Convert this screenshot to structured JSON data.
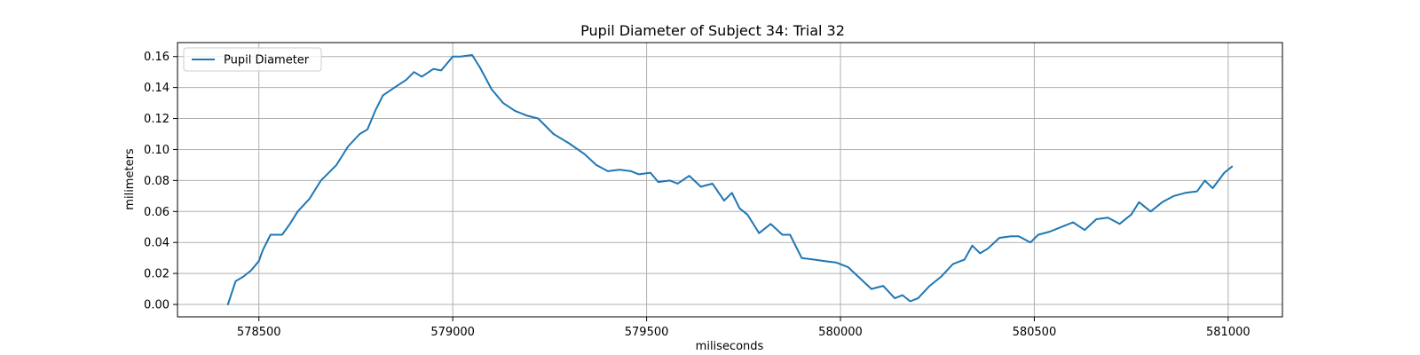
{
  "chart_data": {
    "type": "line",
    "title": "Pupil Diameter of Subject 34: Trial 32",
    "xlabel": "miliseconds",
    "ylabel": "milimeters",
    "xlim": [
      578290,
      581140
    ],
    "ylim": [
      -0.008,
      0.169
    ],
    "x_ticks": [
      578500,
      579000,
      579500,
      580000,
      580500,
      581000
    ],
    "y_ticks": [
      0.0,
      0.02,
      0.04,
      0.06,
      0.08,
      0.1,
      0.12,
      0.14,
      0.16
    ],
    "y_tick_labels": [
      "0.00",
      "0.02",
      "0.04",
      "0.06",
      "0.08",
      "0.10",
      "0.12",
      "0.14",
      "0.16"
    ],
    "grid": true,
    "legend_position": "top-left",
    "series": [
      {
        "name": "Pupil Diameter",
        "color": "#1f77b4",
        "x": [
          578420,
          578440,
          578460,
          578480,
          578500,
          578510,
          578530,
          578560,
          578580,
          578600,
          578630,
          578660,
          578700,
          578730,
          578760,
          578780,
          578800,
          578820,
          578850,
          578880,
          578900,
          578920,
          578950,
          578970,
          579000,
          579020,
          579050,
          579070,
          579100,
          579130,
          579160,
          579190,
          579220,
          579260,
          579300,
          579340,
          579370,
          579400,
          579430,
          579460,
          579480,
          579510,
          579530,
          579560,
          579580,
          579610,
          579640,
          579670,
          579700,
          579720,
          579740,
          579760,
          579790,
          579820,
          579850,
          579870,
          579900,
          579930,
          579960,
          579990,
          580020,
          580050,
          580080,
          580110,
          580140,
          580160,
          580180,
          580200,
          580230,
          580260,
          580290,
          580320,
          580340,
          580360,
          580380,
          580410,
          580440,
          580460,
          580490,
          580510,
          580540,
          580570,
          580600,
          580630,
          580660,
          580690,
          580720,
          580750,
          580770,
          580800,
          580830,
          580860,
          580890,
          580920,
          580940,
          580960,
          580990,
          581010
        ],
        "values": [
          0.0,
          0.015,
          0.018,
          0.022,
          0.028,
          0.035,
          0.045,
          0.045,
          0.052,
          0.06,
          0.068,
          0.08,
          0.09,
          0.102,
          0.11,
          0.113,
          0.125,
          0.135,
          0.14,
          0.145,
          0.15,
          0.147,
          0.152,
          0.151,
          0.16,
          0.16,
          0.161,
          0.153,
          0.139,
          0.13,
          0.125,
          0.122,
          0.12,
          0.11,
          0.104,
          0.097,
          0.09,
          0.086,
          0.087,
          0.086,
          0.084,
          0.085,
          0.079,
          0.08,
          0.078,
          0.083,
          0.076,
          0.078,
          0.067,
          0.072,
          0.062,
          0.058,
          0.046,
          0.052,
          0.045,
          0.045,
          0.03,
          0.029,
          0.028,
          0.027,
          0.024,
          0.017,
          0.01,
          0.012,
          0.004,
          0.006,
          0.002,
          0.004,
          0.012,
          0.018,
          0.026,
          0.029,
          0.038,
          0.033,
          0.036,
          0.043,
          0.044,
          0.044,
          0.04,
          0.045,
          0.047,
          0.05,
          0.053,
          0.048,
          0.055,
          0.056,
          0.052,
          0.058,
          0.066,
          0.06,
          0.066,
          0.07,
          0.072,
          0.073,
          0.08,
          0.075,
          0.085,
          0.089
        ]
      }
    ]
  }
}
